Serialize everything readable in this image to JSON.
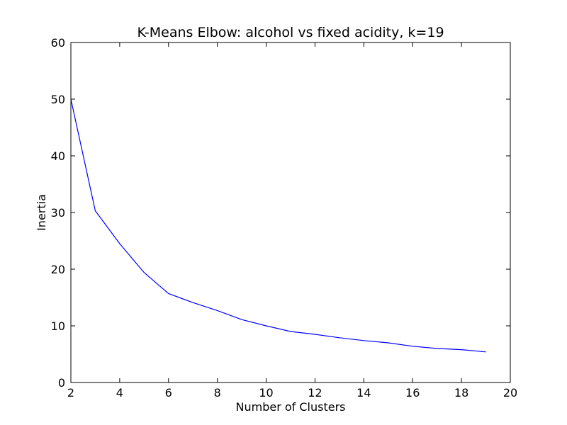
{
  "chart_data": {
    "type": "line",
    "title": "K-Means Elbow: alcohol vs fixed acidity, k=19",
    "xlabel": "Number of Clusters",
    "ylabel": "Inertia",
    "xlim": [
      2,
      20
    ],
    "ylim": [
      0,
      60
    ],
    "xticks": [
      2,
      4,
      6,
      8,
      10,
      12,
      14,
      16,
      18,
      20
    ],
    "yticks": [
      0,
      10,
      20,
      30,
      40,
      50,
      60
    ],
    "grid": false,
    "series": [
      {
        "color": "#0000ff",
        "x": [
          2,
          3,
          4,
          5,
          6,
          7,
          8,
          9,
          10,
          11,
          12,
          13,
          14,
          15,
          16,
          17,
          18,
          19
        ],
        "y": [
          50.0,
          30.3,
          24.5,
          19.4,
          15.7,
          14.1,
          12.7,
          11.1,
          10.0,
          9.0,
          8.5,
          7.9,
          7.4,
          7.0,
          6.4,
          6.0,
          5.8,
          5.4
        ]
      }
    ]
  }
}
